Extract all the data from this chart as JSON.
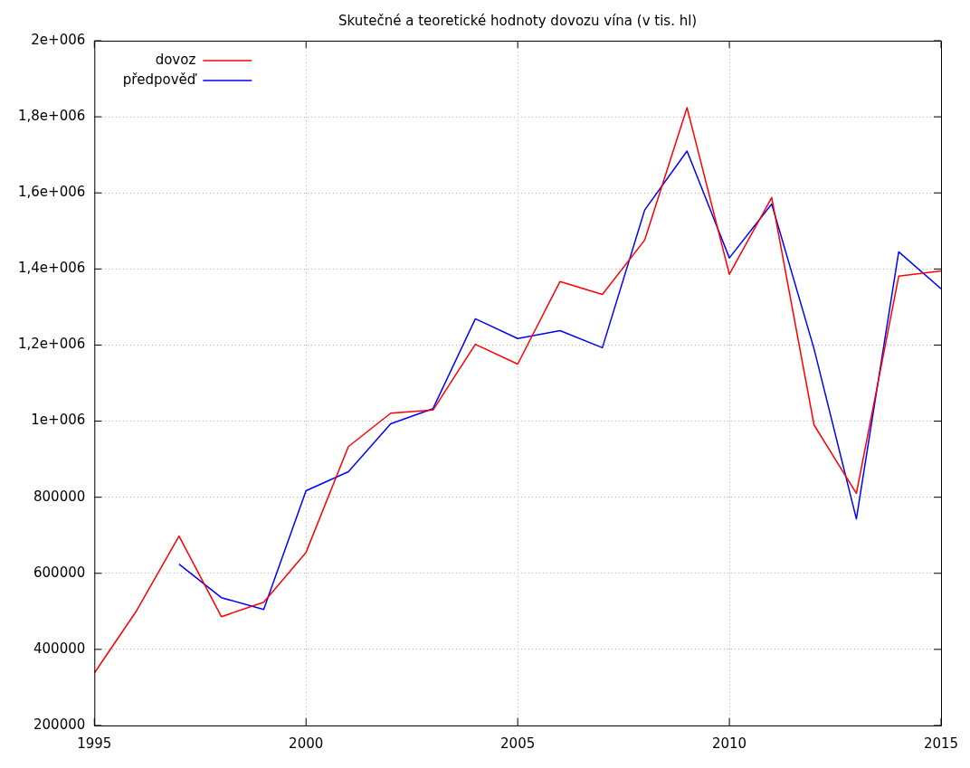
{
  "chart_data": {
    "type": "line",
    "title": "Skutečné a teoretické hodnoty dovozu vína (v tis. hl)",
    "x": [
      1995,
      1996,
      1997,
      1998,
      1999,
      2000,
      2001,
      2002,
      2003,
      2004,
      2005,
      2006,
      2007,
      2008,
      2009,
      2010,
      2011,
      2012,
      2013,
      2014,
      2015
    ],
    "series": [
      {
        "name": "dovoz",
        "color": "#ff0000",
        "values": [
          338000,
          502000,
          698000,
          486000,
          524000,
          655000,
          933000,
          1021000,
          1029000,
          1202000,
          1150000,
          1367000,
          1333000,
          1476000,
          1824000,
          1386000,
          1588000,
          990000,
          810000,
          1381000,
          1395000
        ]
      },
      {
        "name": "předpověď",
        "color": "#0000ff",
        "values": [
          null,
          null,
          624000,
          536000,
          505000,
          817000,
          867000,
          993000,
          1033000,
          1269000,
          1217000,
          1238000,
          1193000,
          1555000,
          1710000,
          1429000,
          1571000,
          1190000,
          743000,
          1445000,
          1348000
        ]
      }
    ],
    "xlim": [
      1995,
      2015
    ],
    "xticks": [
      1995,
      2000,
      2005,
      2010,
      2015
    ],
    "ylim": [
      200000,
      2000000
    ],
    "yticks": [
      200000,
      400000,
      600000,
      800000,
      {
        "value": 1000000,
        "label": "1e+006"
      },
      {
        "value": 1200000,
        "label": "1,2e+006"
      },
      {
        "value": 1400000,
        "label": "1,4e+006"
      },
      {
        "value": 1600000,
        "label": "1,6e+006"
      },
      {
        "value": 1800000,
        "label": "1,8e+006"
      },
      {
        "value": 2000000,
        "label": "2e+006"
      }
    ],
    "grid": true,
    "legend": "top left",
    "marker": "none",
    "line_style": "solid"
  }
}
